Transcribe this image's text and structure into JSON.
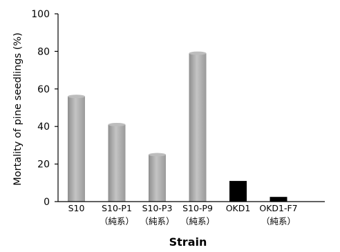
{
  "chart_data": {
    "type": "bar",
    "categories": [
      {
        "label": "S10",
        "sublabel": ""
      },
      {
        "label": "S10-P1",
        "sublabel": "（純系）"
      },
      {
        "label": "S10-P3",
        "sublabel": "（純系）"
      },
      {
        "label": "S10-P9",
        "sublabel": "（純系）"
      },
      {
        "label": "OKD1",
        "sublabel": ""
      },
      {
        "label": "OKD1-F7",
        "sublabel": "（純系）"
      }
    ],
    "values": [
      56,
      41,
      25,
      79,
      11,
      2.5
    ],
    "bar_colors": [
      "#a8a8a8",
      "#a8a8a8",
      "#a8a8a8",
      "#a8a8a8",
      "#000000",
      "#000000"
    ],
    "title": "",
    "xlabel": "Strain",
    "ylabel": "Mortality of pine seedlings (%)",
    "ylim": [
      0,
      100
    ],
    "yticks": [
      "0",
      "20",
      "40",
      "60",
      "80",
      "100"
    ],
    "grid": false,
    "legend": "none"
  }
}
